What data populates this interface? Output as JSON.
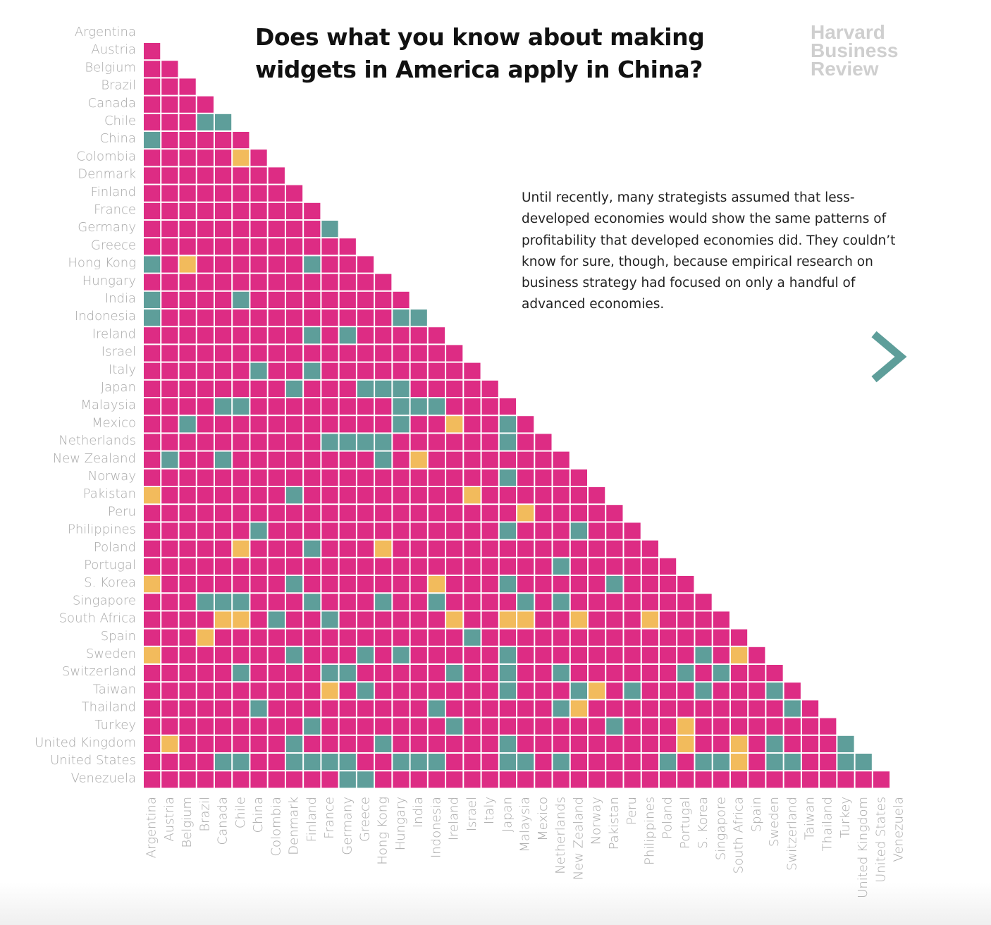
{
  "title": "Does what you know about making widgets in America apply in China?",
  "logo": [
    "Harvard",
    "Business",
    "Review"
  ],
  "description": "Until recently, many strategists assumed that less-developed economies would show the same patterns of profitability that developed economies did. They couldn’t know for sure, though, because empirical research on business strategy had focused on only a handful of advanced economies.",
  "next_icon": "chevron-right-icon",
  "colors": {
    "magenta": "#dd2c84",
    "teal": "#5e9e9a",
    "yellow": "#f2bb5c",
    "label": "#a9a9a9",
    "chevron": "#5e9e9a"
  },
  "chart_data": {
    "type": "heatmap",
    "layout": "lower-triangle",
    "grid": false,
    "legend": "none",
    "countries": [
      "Argentina",
      "Austria",
      "Belgium",
      "Brazil",
      "Canada",
      "Chile",
      "China",
      "Colombia",
      "Denmark",
      "Finland",
      "France",
      "Germany",
      "Greece",
      "Hong Kong",
      "Hungary",
      "India",
      "Indonesia",
      "Ireland",
      "Israel",
      "Italy",
      "Japan",
      "Malaysia",
      "Mexico",
      "Netherlands",
      "New Zealand",
      "Norway",
      "Pakistan",
      "Peru",
      "Philippines",
      "Poland",
      "Portugal",
      "S. Korea",
      "Singapore",
      "South Africa",
      "Spain",
      "Sweden",
      "Switzerland",
      "Taiwan",
      "Thailand",
      "Turkey",
      "United Kingdom",
      "United States",
      "Venezuela"
    ],
    "default_category": "magenta",
    "exceptions": {
      "Chile": {
        "teal": [
          "Brazil",
          "Canada"
        ]
      },
      "China": {
        "teal": [
          "Argentina"
        ]
      },
      "Colombia": {
        "yellow": [
          "Chile"
        ]
      },
      "Germany": {
        "teal": [
          "France"
        ]
      },
      "Hong Kong": {
        "teal": [
          "Argentina",
          "Finland"
        ],
        "yellow": [
          "Belgium"
        ]
      },
      "India": {
        "teal": [
          "Argentina",
          "Chile"
        ]
      },
      "Indonesia": {
        "teal": [
          "Argentina",
          "Hungary",
          "India"
        ]
      },
      "Ireland": {
        "teal": [
          "Finland",
          "Germany"
        ]
      },
      "Italy": {
        "teal": [
          "China",
          "Finland"
        ]
      },
      "Japan": {
        "teal": [
          "Denmark",
          "Greece",
          "Hong Kong",
          "Hungary"
        ]
      },
      "Malaysia": {
        "teal": [
          "Canada",
          "Chile",
          "Hungary",
          "India",
          "Indonesia"
        ]
      },
      "Mexico": {
        "teal": [
          "Belgium",
          "Hungary",
          "Japan"
        ],
        "yellow": [
          "Ireland"
        ]
      },
      "Netherlands": {
        "teal": [
          "France",
          "Germany",
          "Greece",
          "Hong Kong",
          "Japan"
        ]
      },
      "New Zealand": {
        "teal": [
          "Austria",
          "Canada",
          "Hong Kong"
        ],
        "yellow": [
          "India"
        ]
      },
      "Norway": {
        "teal": [
          "Japan"
        ]
      },
      "Pakistan": {
        "teal": [
          "Denmark"
        ],
        "yellow": [
          "Argentina",
          "Israel"
        ]
      },
      "Peru": {
        "yellow": [
          "Malaysia"
        ]
      },
      "Philippines": {
        "teal": [
          "China",
          "Japan",
          "New Zealand"
        ]
      },
      "Poland": {
        "teal": [
          "Finland"
        ],
        "yellow": [
          "Chile",
          "Hong Kong"
        ]
      },
      "Portugal": {
        "teal": [
          "Netherlands"
        ]
      },
      "S. Korea": {
        "teal": [
          "Denmark",
          "Japan",
          "Pakistan"
        ],
        "yellow": [
          "Argentina",
          "Indonesia"
        ]
      },
      "Singapore": {
        "teal": [
          "Brazil",
          "Canada",
          "Chile",
          "Finland",
          "Hong Kong",
          "Indonesia",
          "Malaysia",
          "Netherlands"
        ]
      },
      "South Africa": {
        "teal": [
          "Colombia",
          "France"
        ],
        "yellow": [
          "Canada",
          "Chile",
          "Ireland",
          "Japan",
          "Malaysia",
          "New Zealand",
          "Philippines"
        ]
      },
      "Spain": {
        "teal": [
          "Israel"
        ],
        "yellow": [
          "Brazil"
        ]
      },
      "Sweden": {
        "teal": [
          "Denmark",
          "Greece",
          "Hungary",
          "Japan",
          "S. Korea"
        ],
        "yellow": [
          "Argentina",
          "South Africa"
        ]
      },
      "Switzerland": {
        "teal": [
          "Chile",
          "France",
          "Germany",
          "Ireland",
          "Japan",
          "Netherlands",
          "Portugal",
          "Singapore"
        ]
      },
      "Taiwan": {
        "teal": [
          "Greece",
          "Japan",
          "New Zealand",
          "Peru",
          "S. Korea",
          "Sweden"
        ],
        "yellow": [
          "France",
          "Norway"
        ]
      },
      "Thailand": {
        "teal": [
          "China",
          "Indonesia",
          "Netherlands",
          "Switzerland"
        ],
        "yellow": [
          "New Zealand"
        ]
      },
      "Turkey": {
        "teal": [
          "Finland",
          "Ireland",
          "Pakistan"
        ],
        "yellow": [
          "Portugal"
        ]
      },
      "United Kingdom": {
        "teal": [
          "Denmark",
          "Hong Kong",
          "Japan",
          "Sweden",
          "Turkey"
        ],
        "yellow": [
          "Austria",
          "Portugal",
          "South Africa"
        ]
      },
      "United States": {
        "teal": [
          "Canada",
          "Chile",
          "Denmark",
          "Finland",
          "France",
          "Germany",
          "Hungary",
          "India",
          "Indonesia",
          "Japan",
          "Malaysia",
          "Netherlands",
          "Poland",
          "S. Korea",
          "Singapore",
          "Sweden",
          "Switzerland",
          "Turkey",
          "United Kingdom"
        ],
        "yellow": [
          "South Africa"
        ]
      },
      "Venezuela": {
        "teal": [
          "Germany",
          "Greece"
        ]
      }
    }
  }
}
